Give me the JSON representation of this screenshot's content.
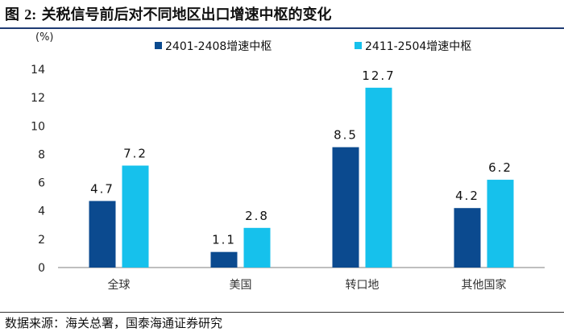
{
  "figure": {
    "label": "图",
    "number": "2:",
    "title": "关税信号前后对不同地区出口增速中枢的变化"
  },
  "source": "数据来源：海关总署，国泰海通证券研究",
  "chart_data": {
    "type": "bar",
    "ylabel": "(%)",
    "ylim": [
      0,
      14
    ],
    "yticks": [
      0,
      2,
      4,
      6,
      8,
      10,
      12,
      14
    ],
    "grid": false,
    "legend_position": "top-center",
    "categories": [
      "全球",
      "美国",
      "转口地",
      "其他国家"
    ],
    "series": [
      {
        "name": "2401-2408增速中枢",
        "color": "#0b4a8f",
        "values": [
          4.7,
          1.1,
          8.5,
          4.2
        ],
        "labels": [
          "4.7",
          "1.1",
          "8.5",
          "4.2"
        ]
      },
      {
        "name": "2411-2504增速中枢",
        "color": "#16c1ec",
        "values": [
          7.2,
          2.8,
          12.7,
          6.2
        ],
        "labels": [
          "7.2",
          "2.8",
          "12.7",
          "6.2"
        ]
      }
    ]
  }
}
